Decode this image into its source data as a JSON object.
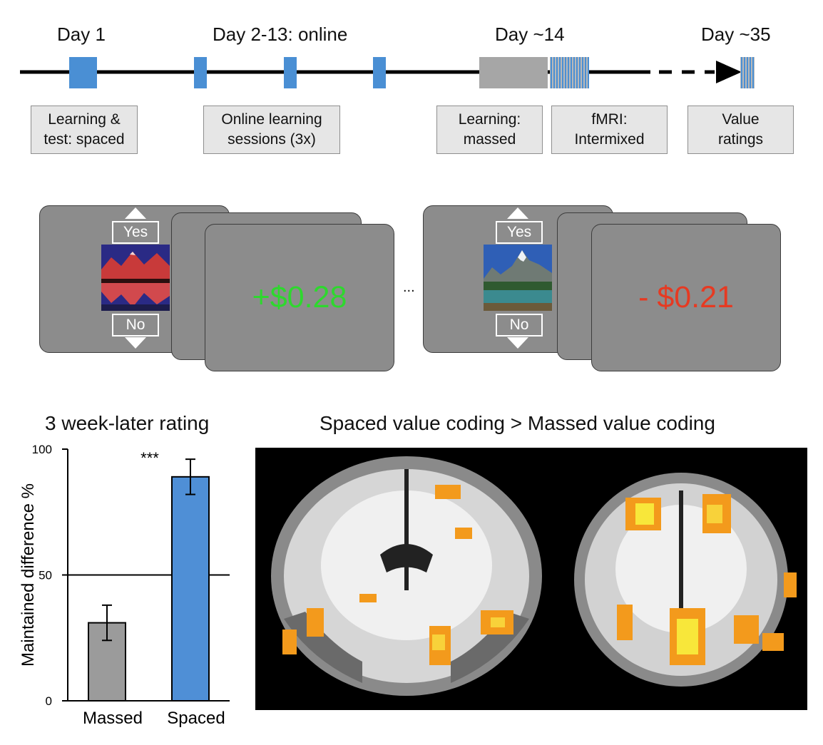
{
  "timeline": {
    "days": [
      {
        "label": "Day 1"
      },
      {
        "label": "Day 2-13:  online"
      },
      {
        "label": "Day ~14"
      },
      {
        "label": "Day ~35"
      }
    ],
    "boxes": [
      {
        "line1": "Learning &",
        "line2": "test: spaced"
      },
      {
        "line1": "Online learning",
        "line2": "sessions (3x)"
      },
      {
        "line1": "Learning:",
        "line2": "massed"
      },
      {
        "line1": "fMRI:",
        "line2": "Intermixed"
      },
      {
        "line1": "Value",
        "line2": "ratings"
      }
    ],
    "colors": {
      "session": "#4a8fd4",
      "massed": "#a6a6a6",
      "striped_a": "#4a8fd4",
      "striped_b": "#b9b9b9"
    }
  },
  "trials": [
    {
      "yes": "Yes",
      "no": "No",
      "image": "red-mountain-lake-photo",
      "outcome": "+$0.28",
      "outcome_color": "#2ed82e"
    },
    {
      "yes": "Yes",
      "no": "No",
      "image": "green-mountain-lake-photo",
      "outcome": "- $0.21",
      "outcome_color": "#e63a22"
    }
  ],
  "ellipsis": "...",
  "chart_data": {
    "type": "bar",
    "title": "3 week-later rating",
    "ylabel": "Maintained difference %",
    "xlabel": "",
    "categories": [
      "Massed",
      "Spaced"
    ],
    "values": [
      31,
      89
    ],
    "errors": [
      7,
      7
    ],
    "colors": [
      "#9b9b9b",
      "#4f8fd6"
    ],
    "ylim": [
      0,
      100
    ],
    "yticks": [
      "0",
      "50",
      "100"
    ],
    "reference_line": 50,
    "significance": "***"
  },
  "brain_panel": {
    "title": "Spaced value coding > Massed value coding",
    "views": [
      "coronal-slice",
      "coronal-slice-posterior"
    ]
  }
}
